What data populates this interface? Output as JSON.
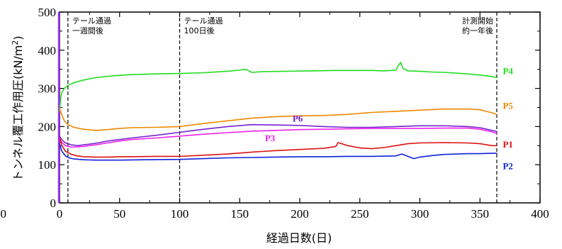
{
  "chart_data": {
    "type": "line",
    "title": "",
    "xlabel": "経過日数(日)",
    "ylabel_main": "トンネル覆工作用圧(kN/m",
    "ylabel_sup": "2",
    "ylabel_close": ")",
    "xlim": [
      0,
      400
    ],
    "ylim": [
      0,
      500
    ],
    "x_ticks": [
      0,
      50,
      100,
      150,
      200,
      250,
      300,
      350,
      400
    ],
    "y_ticks": [
      0,
      100,
      200,
      300,
      400,
      500
    ],
    "x_tick_labels": [
      "0",
      "50",
      "100",
      "150",
      "200",
      "250",
      "300",
      "350",
      "400"
    ],
    "left_edge_label": "00",
    "y_tick_labels": [
      "0",
      "100",
      "200",
      "300",
      "400",
      "500"
    ],
    "grid": false,
    "legend": "inline labels at line ends",
    "event_lines": [
      {
        "x": 7,
        "lines": [
          "テール通過",
          "一週間後"
        ]
      },
      {
        "x": 100,
        "lines": [
          "テール通過",
          "100日後"
        ]
      },
      {
        "x": 364,
        "lines": [
          "計測開始",
          "約一年後"
        ]
      }
    ],
    "series": [
      {
        "name": "P4",
        "color": "#22dd22",
        "x": [
          0,
          1,
          2,
          4,
          7,
          12,
          20,
          30,
          45,
          60,
          80,
          100,
          120,
          140,
          150,
          155,
          160,
          170,
          190,
          210,
          230,
          250,
          260,
          270,
          280,
          282,
          284,
          286,
          290,
          300,
          310,
          320,
          330,
          340,
          350,
          360,
          364
        ],
        "y": [
          240,
          275,
          290,
          300,
          308,
          315,
          322,
          328,
          333,
          336,
          338,
          339,
          341,
          345,
          348,
          350,
          342,
          344,
          345,
          346,
          347,
          347,
          347,
          346,
          348,
          360,
          368,
          352,
          346,
          345,
          343,
          342,
          340,
          338,
          335,
          331,
          328
        ]
      },
      {
        "name": "P5",
        "color": "#ee8800",
        "x": [
          0,
          2,
          4,
          7,
          12,
          20,
          30,
          40,
          50,
          60,
          80,
          100,
          120,
          140,
          160,
          180,
          200,
          220,
          240,
          260,
          280,
          300,
          320,
          340,
          350,
          360,
          364
        ],
        "y": [
          248,
          230,
          215,
          205,
          198,
          193,
          190,
          192,
          195,
          197,
          198,
          200,
          208,
          215,
          222,
          226,
          228,
          229,
          232,
          237,
          240,
          243,
          246,
          246,
          244,
          236,
          232
        ]
      },
      {
        "name": "P6",
        "color": "#7722cc",
        "x": [
          0,
          2,
          5,
          10,
          15,
          20,
          30,
          40,
          50,
          60,
          80,
          100,
          120,
          140,
          160,
          180,
          200,
          220,
          240,
          260,
          280,
          300,
          320,
          340,
          350,
          360,
          364
        ],
        "y": [
          175,
          165,
          157,
          152,
          150,
          152,
          156,
          162,
          166,
          170,
          177,
          185,
          193,
          200,
          205,
          204,
          203,
          200,
          198,
          198,
          200,
          202,
          202,
          200,
          197,
          190,
          187
        ]
      },
      {
        "name": "P3",
        "color": "#ee22ee",
        "x": [
          0,
          2,
          5,
          10,
          20,
          30,
          40,
          50,
          60,
          80,
          100,
          120,
          140,
          160,
          180,
          200,
          220,
          240,
          260,
          280,
          300,
          320,
          340,
          350,
          360,
          364
        ],
        "y": [
          168,
          158,
          150,
          146,
          148,
          152,
          157,
          162,
          166,
          170,
          175,
          180,
          184,
          188,
          190,
          192,
          193,
          194,
          195,
          195,
          195,
          196,
          196,
          193,
          186,
          182
        ]
      },
      {
        "name": "P1",
        "color": "#dd1111",
        "x": [
          0,
          2,
          5,
          10,
          15,
          20,
          30,
          40,
          50,
          60,
          80,
          100,
          120,
          140,
          160,
          180,
          200,
          220,
          230,
          232,
          240,
          250,
          260,
          270,
          280,
          290,
          300,
          320,
          340,
          350,
          360,
          364
        ],
        "y": [
          170,
          150,
          135,
          127,
          123,
          121,
          120,
          120,
          121,
          121,
          122,
          122,
          125,
          128,
          133,
          137,
          140,
          143,
          148,
          158,
          150,
          144,
          142,
          145,
          150,
          155,
          157,
          158,
          157,
          155,
          150,
          150
        ]
      },
      {
        "name": "P2",
        "color": "#1122dd",
        "x": [
          0,
          2,
          5,
          8,
          12,
          20,
          30,
          50,
          70,
          100,
          120,
          140,
          160,
          180,
          200,
          220,
          240,
          260,
          280,
          285,
          290,
          295,
          300,
          310,
          320,
          340,
          350,
          360,
          364
        ],
        "y": [
          155,
          135,
          123,
          118,
          115,
          113,
          112,
          112,
          113,
          114,
          116,
          118,
          119,
          120,
          121,
          121,
          122,
          122,
          123,
          128,
          122,
          116,
          120,
          124,
          127,
          129,
          129,
          130,
          130
        ]
      }
    ],
    "series_labels": [
      {
        "name": "P4",
        "label_x": 369,
        "label_y": 337
      },
      {
        "name": "P5",
        "label_x": 369,
        "label_y": 246
      },
      {
        "name": "P6",
        "label_x": 194,
        "label_y": 213
      },
      {
        "name": "P3",
        "label_x": 171,
        "label_y": 162
      },
      {
        "name": "P1",
        "label_x": 369,
        "label_y": 145
      },
      {
        "name": "P2",
        "label_x": 369,
        "label_y": 88
      }
    ]
  }
}
